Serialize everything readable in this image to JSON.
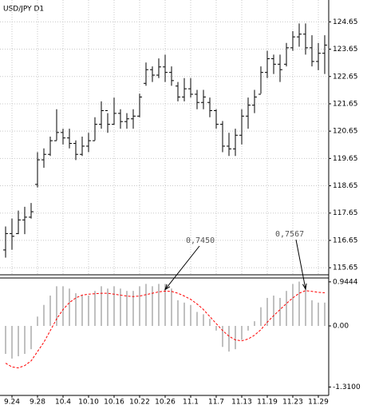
{
  "chart_data": [
    {
      "type": "ohlc",
      "title": "USD/JPY D1",
      "color": "#000000",
      "grid": true,
      "ylim": [
        115.42,
        125.45
      ],
      "yticks": [
        115.65,
        116.65,
        117.65,
        118.65,
        119.65,
        120.65,
        121.65,
        122.65,
        123.65,
        124.65
      ],
      "series": {
        "open": [
          116.3,
          116.9,
          116.9,
          117.4,
          117.5,
          118.7,
          119.6,
          119.8,
          120.3,
          120.6,
          120.4,
          120.2,
          119.8,
          120.1,
          120.3,
          120.9,
          121.4,
          120.9,
          121.3,
          121.0,
          121.1,
          121.2,
          122.4,
          122.9,
          122.7,
          123.0,
          122.8,
          122.3,
          121.9,
          122.2,
          122.0,
          121.7,
          121.7,
          121.4,
          120.9,
          120.1,
          120.0,
          120.5,
          121.2,
          121.6,
          122.0,
          122.8,
          123.3,
          123.1,
          123.1,
          123.7,
          124.1,
          124.2,
          123.7,
          123.2,
          123.5
        ],
        "high": [
          117.16,
          117.45,
          117.74,
          117.88,
          118.02,
          119.88,
          120.02,
          120.45,
          121.45,
          120.74,
          120.74,
          120.31,
          120.45,
          120.59,
          121.16,
          121.74,
          121.31,
          121.88,
          121.45,
          121.31,
          121.45,
          122.02,
          123.16,
          123.02,
          123.31,
          123.45,
          123.02,
          122.45,
          122.59,
          122.59,
          122.16,
          122.16,
          121.88,
          121.45,
          121.02,
          120.59,
          120.74,
          121.45,
          121.88,
          122.16,
          123.02,
          123.59,
          123.45,
          123.45,
          123.88,
          124.31,
          124.59,
          124.59,
          124.16,
          123.88,
          124.16
        ],
        "low": [
          116.02,
          116.31,
          116.88,
          116.88,
          117.45,
          118.59,
          119.31,
          119.74,
          120.31,
          120.16,
          120.02,
          119.59,
          119.74,
          119.88,
          120.31,
          120.74,
          120.59,
          120.88,
          120.74,
          120.74,
          120.74,
          121.16,
          122.31,
          122.45,
          122.59,
          122.45,
          122.31,
          121.74,
          121.74,
          121.88,
          121.45,
          121.45,
          121.16,
          120.74,
          119.88,
          119.74,
          119.74,
          120.16,
          120.74,
          121.31,
          122.02,
          122.59,
          122.74,
          122.45,
          123.02,
          123.59,
          123.74,
          123.45,
          123.02,
          122.88,
          122.74
        ],
        "close": [
          116.9,
          116.8,
          117.4,
          117.5,
          117.7,
          119.6,
          119.8,
          120.3,
          120.6,
          120.4,
          120.2,
          119.8,
          120.1,
          120.3,
          120.9,
          121.4,
          120.9,
          121.3,
          121.0,
          121.1,
          121.2,
          121.9,
          122.9,
          122.7,
          123.0,
          122.8,
          122.5,
          121.9,
          122.2,
          122.0,
          121.7,
          121.9,
          121.4,
          120.9,
          120.1,
          120.0,
          120.5,
          121.2,
          121.6,
          121.9,
          122.8,
          123.3,
          123.1,
          122.9,
          123.7,
          124.1,
          124.2,
          123.7,
          123.2,
          123.5,
          123.8
        ]
      }
    },
    {
      "type": "histogram_line",
      "categories": [
        null,
        "9.24",
        null,
        null,
        null,
        "9.28",
        null,
        null,
        null,
        "10.4",
        null,
        null,
        null,
        "10.10",
        null,
        null,
        null,
        "10.16",
        null,
        null,
        null,
        "10.22",
        null,
        null,
        null,
        "10.26",
        null,
        null,
        null,
        "11.1",
        null,
        null,
        null,
        "11.7",
        null,
        null,
        null,
        "11.13",
        null,
        null,
        null,
        "11.19",
        null,
        null,
        null,
        "11.23",
        null,
        null,
        null,
        "11.29",
        null
      ],
      "ylim": [
        -1.49,
        1.01
      ],
      "yticks": [
        {
          "value": -1.31,
          "label": "-1.3100"
        },
        {
          "value": 0,
          "label": "0.00"
        },
        0.9444
      ],
      "series": [
        {
          "type": "bar",
          "color": "#c0c0c0",
          "values": [
            -0.6,
            -0.7,
            -0.65,
            -0.6,
            -0.5,
            0.2,
            0.45,
            0.65,
            0.85,
            0.85,
            0.8,
            0.7,
            0.65,
            0.65,
            0.75,
            0.85,
            0.8,
            0.85,
            0.8,
            0.75,
            0.75,
            0.85,
            0.9,
            0.85,
            0.9,
            0.9,
            0.8,
            0.55,
            0.5,
            0.45,
            0.3,
            0.25,
            0.15,
            -0.1,
            -0.45,
            -0.55,
            -0.5,
            -0.3,
            -0.1,
            0.1,
            0.4,
            0.6,
            0.65,
            0.6,
            0.75,
            0.9,
            0.95,
            0.8,
            0.55,
            0.5,
            0.5
          ]
        },
        {
          "type": "line",
          "color": "#ff0000",
          "dashed": true,
          "values": [
            -0.8,
            -0.88,
            -0.9,
            -0.85,
            -0.75,
            -0.55,
            -0.35,
            -0.1,
            0.15,
            0.35,
            0.5,
            0.6,
            0.66,
            0.68,
            0.69,
            0.7,
            0.7,
            0.68,
            0.66,
            0.64,
            0.63,
            0.64,
            0.67,
            0.7,
            0.73,
            0.745,
            0.74,
            0.7,
            0.64,
            0.57,
            0.47,
            0.35,
            0.2,
            0.05,
            -0.1,
            -0.22,
            -0.3,
            -0.32,
            -0.28,
            -0.2,
            -0.08,
            0.08,
            0.22,
            0.35,
            0.48,
            0.6,
            0.7,
            0.7567,
            0.74,
            0.72,
            0.71
          ]
        }
      ],
      "annotations": [
        {
          "text": "0,7450"
        },
        {
          "text": "0,7567"
        }
      ]
    }
  ]
}
